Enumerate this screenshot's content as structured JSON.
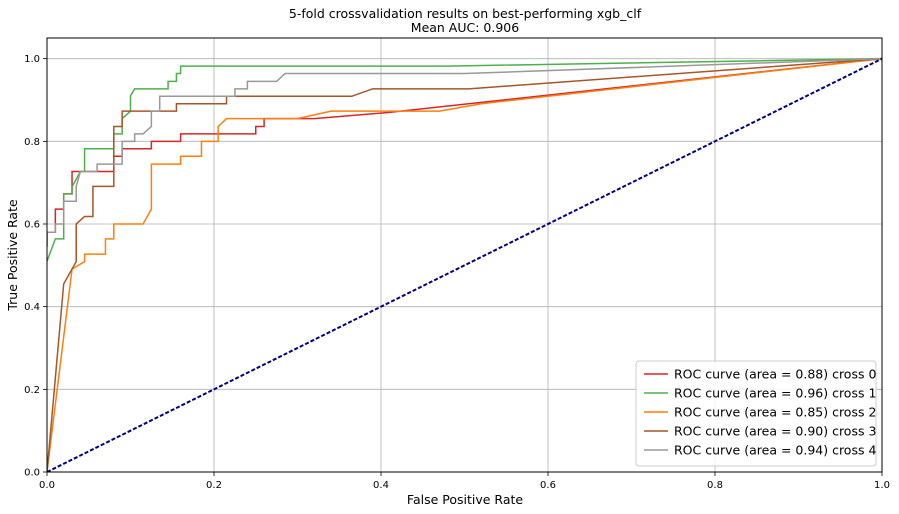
{
  "chart_data": {
    "type": "line",
    "title": "5-fold crossvalidation results on best-performing xgb_clf",
    "subtitle": "Mean AUC: 0.906",
    "xlabel": "False Positive Rate",
    "ylabel": "True Positive Rate",
    "xlim": [
      0,
      1
    ],
    "ylim": [
      0,
      1.05
    ],
    "xticks": [
      0.0,
      0.2,
      0.4,
      0.6,
      0.8,
      1.0
    ],
    "yticks": [
      0.0,
      0.2,
      0.4,
      0.6,
      0.8,
      1.0
    ],
    "xtick_labels": [
      "0.0",
      "0.2",
      "0.4",
      "0.6",
      "0.8",
      "1.0"
    ],
    "ytick_labels": [
      "0.0",
      "0.2",
      "0.4",
      "0.6",
      "0.8",
      "1.0"
    ],
    "grid": true,
    "legend_position": "bottom-right",
    "series": [
      {
        "name": "ROC curve (area = 0.88) cross 0",
        "color": "#d62728",
        "points": [
          [
            0,
            0.545
          ],
          [
            0,
            0.58
          ],
          [
            0.01,
            0.58
          ],
          [
            0.01,
            0.636
          ],
          [
            0.02,
            0.636
          ],
          [
            0.02,
            0.673
          ],
          [
            0.03,
            0.673
          ],
          [
            0.03,
            0.727
          ],
          [
            0.08,
            0.727
          ],
          [
            0.08,
            0.764
          ],
          [
            0.09,
            0.764
          ],
          [
            0.09,
            0.782
          ],
          [
            0.125,
            0.782
          ],
          [
            0.125,
            0.8
          ],
          [
            0.16,
            0.8
          ],
          [
            0.16,
            0.818
          ],
          [
            0.25,
            0.818
          ],
          [
            0.25,
            0.836
          ],
          [
            0.26,
            0.836
          ],
          [
            0.26,
            0.855
          ],
          [
            0.32,
            0.855
          ],
          [
            0.41,
            0.87
          ],
          [
            1.0,
            1.0
          ]
        ]
      },
      {
        "name": "ROC curve (area = 0.96) cross 1",
        "color": "#4daf4a",
        "points": [
          [
            0,
            0.51
          ],
          [
            0.01,
            0.564
          ],
          [
            0.02,
            0.564
          ],
          [
            0.02,
            0.673
          ],
          [
            0.03,
            0.673
          ],
          [
            0.03,
            0.69
          ],
          [
            0.04,
            0.727
          ],
          [
            0.045,
            0.727
          ],
          [
            0.045,
            0.782
          ],
          [
            0.08,
            0.782
          ],
          [
            0.08,
            0.818
          ],
          [
            0.09,
            0.818
          ],
          [
            0.09,
            0.855
          ],
          [
            0.1,
            0.873
          ],
          [
            0.1,
            0.91
          ],
          [
            0.105,
            0.927
          ],
          [
            0.145,
            0.927
          ],
          [
            0.145,
            0.945
          ],
          [
            0.155,
            0.945
          ],
          [
            0.155,
            0.964
          ],
          [
            0.16,
            0.964
          ],
          [
            0.16,
            0.982
          ],
          [
            0.48,
            0.982
          ],
          [
            1.0,
            1.0
          ]
        ]
      },
      {
        "name": "ROC curve (area = 0.85) cross 2",
        "color": "#ff7f0e",
        "points": [
          [
            0,
            0
          ],
          [
            0.03,
            0.491
          ],
          [
            0.045,
            0.509
          ],
          [
            0.045,
            0.527
          ],
          [
            0.07,
            0.527
          ],
          [
            0.07,
            0.564
          ],
          [
            0.08,
            0.564
          ],
          [
            0.08,
            0.6
          ],
          [
            0.115,
            0.6
          ],
          [
            0.125,
            0.636
          ],
          [
            0.125,
            0.745
          ],
          [
            0.16,
            0.745
          ],
          [
            0.16,
            0.764
          ],
          [
            0.185,
            0.764
          ],
          [
            0.185,
            0.8
          ],
          [
            0.205,
            0.8
          ],
          [
            0.205,
            0.836
          ],
          [
            0.215,
            0.855
          ],
          [
            0.3,
            0.855
          ],
          [
            0.34,
            0.873
          ],
          [
            0.47,
            0.873
          ],
          [
            0.52,
            0.891
          ],
          [
            1.0,
            1.0
          ]
        ]
      },
      {
        "name": "ROC curve (area = 0.90) cross 3",
        "color": "#a65628",
        "points": [
          [
            0,
            0
          ],
          [
            0.02,
            0.455
          ],
          [
            0.03,
            0.491
          ],
          [
            0.035,
            0.509
          ],
          [
            0.035,
            0.6
          ],
          [
            0.045,
            0.618
          ],
          [
            0.055,
            0.618
          ],
          [
            0.055,
            0.691
          ],
          [
            0.08,
            0.691
          ],
          [
            0.08,
            0.836
          ],
          [
            0.09,
            0.836
          ],
          [
            0.09,
            0.873
          ],
          [
            0.155,
            0.873
          ],
          [
            0.155,
            0.891
          ],
          [
            0.215,
            0.891
          ],
          [
            0.215,
            0.909
          ],
          [
            0.365,
            0.909
          ],
          [
            0.39,
            0.927
          ],
          [
            0.505,
            0.927
          ],
          [
            1.0,
            1.0
          ]
        ]
      },
      {
        "name": "ROC curve (area = 0.94) cross 4",
        "color": "#999999",
        "points": [
          [
            0,
            0.58
          ],
          [
            0.01,
            0.58
          ],
          [
            0.01,
            0.6
          ],
          [
            0.02,
            0.6
          ],
          [
            0.02,
            0.655
          ],
          [
            0.035,
            0.655
          ],
          [
            0.035,
            0.691
          ],
          [
            0.04,
            0.727
          ],
          [
            0.06,
            0.727
          ],
          [
            0.06,
            0.745
          ],
          [
            0.09,
            0.745
          ],
          [
            0.09,
            0.8
          ],
          [
            0.105,
            0.8
          ],
          [
            0.105,
            0.818
          ],
          [
            0.115,
            0.818
          ],
          [
            0.125,
            0.836
          ],
          [
            0.125,
            0.873
          ],
          [
            0.135,
            0.873
          ],
          [
            0.135,
            0.909
          ],
          [
            0.225,
            0.909
          ],
          [
            0.225,
            0.927
          ],
          [
            0.24,
            0.927
          ],
          [
            0.24,
            0.945
          ],
          [
            0.275,
            0.945
          ],
          [
            0.285,
            0.964
          ],
          [
            0.5,
            0.964
          ],
          [
            1.0,
            1.0
          ]
        ]
      },
      {
        "name": "",
        "color": "#000080",
        "dashed": true,
        "points": [
          [
            0,
            0
          ],
          [
            1,
            1
          ]
        ]
      }
    ]
  }
}
